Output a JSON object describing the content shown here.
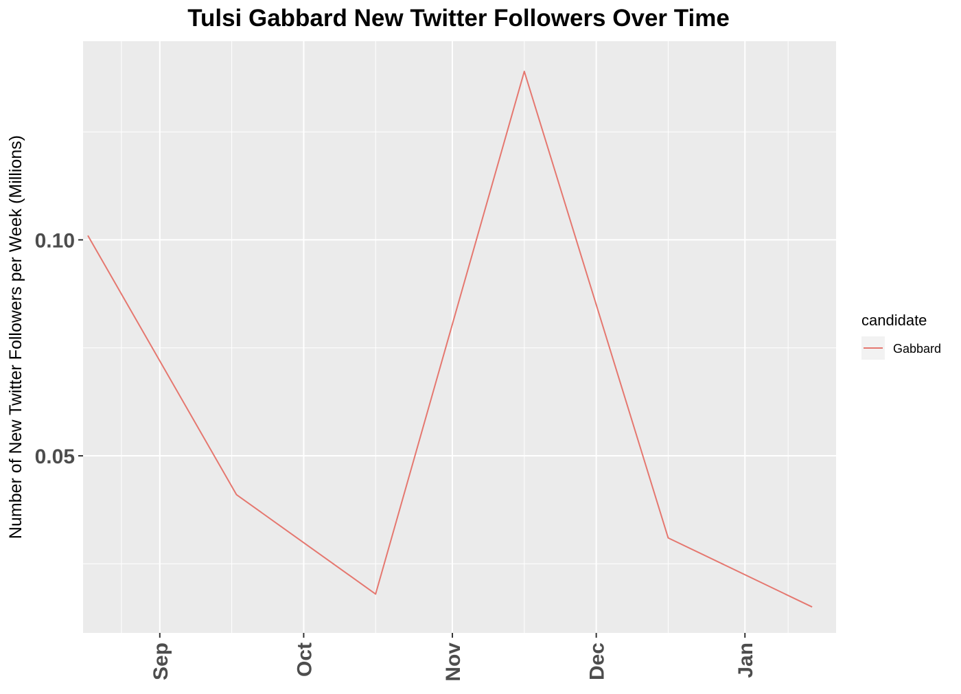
{
  "chart_data": {
    "type": "line",
    "title": "Tulsi Gabbard New Twitter Followers Over Time",
    "xlabel": "",
    "ylabel": "Number of New Twitter Followers per Week (Millions)",
    "x_tick_labels": [
      "Sep",
      "Oct",
      "Nov",
      "Dec",
      "Jan"
    ],
    "y_tick_labels": [
      "0.05",
      "0.10"
    ],
    "y_ticks": [
      0.05,
      0.1
    ],
    "ylim": [
      0.009,
      0.146
    ],
    "xlim": [
      "2019-08-16",
      "2020-01-20"
    ],
    "x_ticks": [
      "2019-09-01",
      "2019-10-01",
      "2019-11-01",
      "2019-12-01",
      "2020-01-01"
    ],
    "grid": true,
    "legend_position": "right",
    "legend_title": "candidate",
    "series": [
      {
        "name": "Gabbard",
        "color": "#E5776F",
        "x": [
          "2019-08-17",
          "2019-09-17",
          "2019-10-16",
          "2019-11-16",
          "2019-12-16",
          "2020-01-15"
        ],
        "y": [
          0.101,
          0.041,
          0.018,
          0.139,
          0.031,
          0.015
        ]
      }
    ]
  }
}
